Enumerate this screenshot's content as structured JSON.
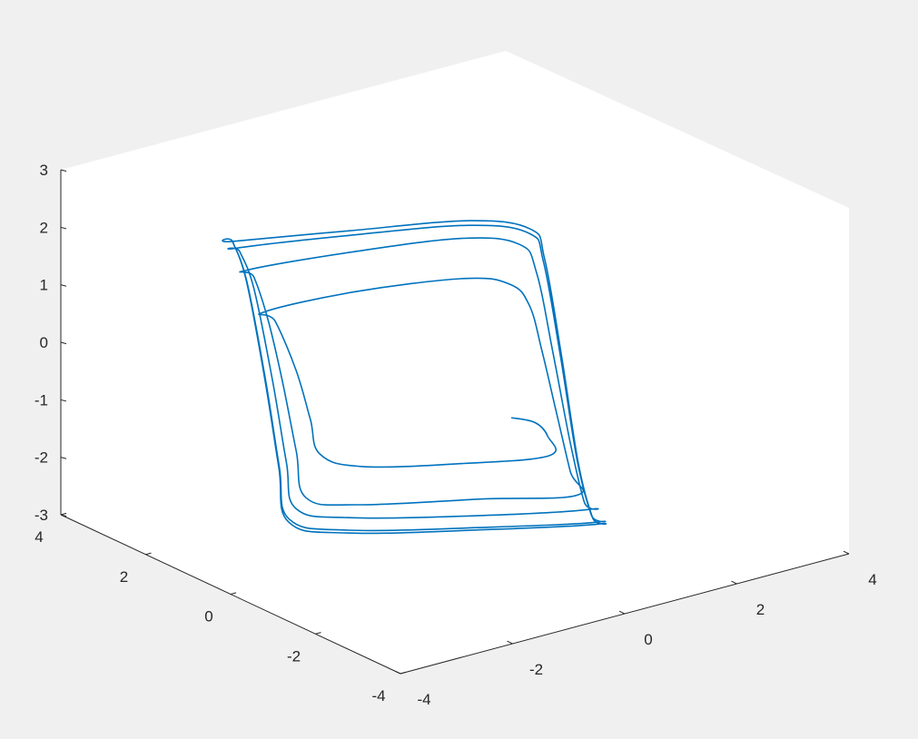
{
  "figure": {
    "background_color": "#f0f0f0",
    "axes_background_color": "#ffffff",
    "axis_color": "#262626",
    "line_color": "#0072bd"
  },
  "chart_data": {
    "type": "line",
    "view": "3d",
    "title": "",
    "xlabel": "",
    "ylabel": "",
    "zlabel": "",
    "grid": false,
    "box": false,
    "xlim": [
      -4,
      4
    ],
    "ylim": [
      -4,
      4
    ],
    "zlim": [
      -3,
      3
    ],
    "xticks": [
      -4,
      -2,
      0,
      2,
      4
    ],
    "yticks": [
      -4,
      -2,
      0,
      2,
      4
    ],
    "zticks": [
      -3,
      -2,
      -1,
      0,
      1,
      2,
      3
    ],
    "xtick_labels": [
      "-4",
      "-2",
      "0",
      "2",
      "4"
    ],
    "ytick_labels": [
      "-4",
      "-2",
      "0",
      "2",
      "4"
    ],
    "ztick_labels": [
      "-3",
      "-2",
      "-1",
      "0",
      "1",
      "2",
      "3"
    ],
    "series": [
      {
        "color": "#0072bd",
        "description": "Trajectory starting near (x=0.4, y=-0.8, z=-0.8) that spirals outward onto a relaxation-oscillation limit cycle: slow branches near z=+2.2 and z=-2.8, fast jumps between them.",
        "points": [
          [
            0.4,
            -0.8,
            -0.8
          ],
          [
            0.9,
            -0.7,
            -1.05
          ],
          [
            1.2,
            -0.6,
            -1.4
          ],
          [
            1.3,
            -0.5,
            -1.8
          ],
          [
            0.0,
            -0.2,
            -1.7
          ],
          [
            -1.5,
            0.2,
            -1.5
          ],
          [
            -2.1,
            0.4,
            -1.2
          ],
          [
            -2.2,
            0.5,
            -0.6
          ],
          [
            -2.3,
            0.7,
            0.2
          ],
          [
            -2.45,
            1.0,
            1.0
          ],
          [
            -2.5,
            1.2,
            1.1
          ],
          [
            -1.2,
            0.8,
            1.25
          ],
          [
            0.3,
            0.2,
            1.3
          ],
          [
            0.9,
            -0.1,
            1.15
          ],
          [
            1.1,
            -0.3,
            0.8
          ],
          [
            1.25,
            -0.4,
            0.0
          ],
          [
            1.35,
            -0.6,
            -1.0
          ],
          [
            1.45,
            -0.8,
            -2.0
          ],
          [
            1.5,
            -0.9,
            -2.4
          ],
          [
            0.2,
            -0.4,
            -2.3
          ],
          [
            -1.5,
            0.3,
            -2.2
          ],
          [
            -2.2,
            0.6,
            -2.0
          ],
          [
            -2.3,
            0.7,
            -1.2
          ],
          [
            -2.4,
            0.9,
            0.0
          ],
          [
            -2.5,
            1.1,
            1.0
          ],
          [
            -2.6,
            1.3,
            1.7
          ],
          [
            -2.65,
            1.4,
            1.8
          ],
          [
            -1.2,
            0.8,
            1.95
          ],
          [
            0.3,
            0.2,
            2.0
          ],
          [
            1.0,
            -0.2,
            1.85
          ],
          [
            1.15,
            -0.4,
            1.4
          ],
          [
            1.3,
            -0.6,
            0.0
          ],
          [
            1.45,
            -0.8,
            -1.5
          ],
          [
            1.55,
            -1.0,
            -2.5
          ],
          [
            1.6,
            -1.1,
            -2.6
          ],
          [
            0.2,
            -0.5,
            -2.55
          ],
          [
            -1.6,
            0.3,
            -2.4
          ],
          [
            -2.3,
            0.7,
            -2.2
          ],
          [
            -2.4,
            0.8,
            -1.4
          ],
          [
            -2.5,
            1.0,
            0.0
          ],
          [
            -2.6,
            1.3,
            1.5
          ],
          [
            -2.7,
            1.5,
            2.1
          ],
          [
            -2.72,
            1.55,
            2.15
          ],
          [
            -1.2,
            0.9,
            2.2
          ],
          [
            0.4,
            0.2,
            2.2
          ],
          [
            1.1,
            -0.3,
            2.05
          ],
          [
            1.2,
            -0.5,
            1.6
          ],
          [
            1.35,
            -0.7,
            0.0
          ],
          [
            1.5,
            -0.9,
            -1.8
          ],
          [
            1.6,
            -1.1,
            -2.7
          ],
          [
            1.65,
            -1.2,
            -2.8
          ],
          [
            0.3,
            -0.5,
            -2.78
          ],
          [
            -1.6,
            0.4,
            -2.65
          ],
          [
            -2.35,
            0.8,
            -2.4
          ],
          [
            -2.45,
            0.9,
            -1.5
          ],
          [
            -2.55,
            1.1,
            0.0
          ],
          [
            -2.65,
            1.4,
            1.6
          ],
          [
            -2.75,
            1.6,
            2.25
          ],
          [
            -2.76,
            1.6,
            2.26
          ],
          [
            -1.2,
            0.9,
            2.28
          ],
          [
            0.4,
            0.2,
            2.28
          ],
          [
            1.12,
            -0.3,
            2.12
          ],
          [
            1.22,
            -0.5,
            1.65
          ],
          [
            1.37,
            -0.7,
            0.0
          ],
          [
            1.52,
            -0.9,
            -1.85
          ],
          [
            1.62,
            -1.1,
            -2.75
          ],
          [
            1.66,
            -1.2,
            -2.84
          ],
          [
            0.3,
            -0.5,
            -2.82
          ],
          [
            -1.6,
            0.4,
            -2.7
          ],
          [
            -2.36,
            0.8,
            -2.45
          ],
          [
            -2.46,
            0.9,
            -1.5
          ],
          [
            -2.56,
            1.1,
            0.0
          ],
          [
            -2.66,
            1.4,
            1.62
          ],
          [
            -2.76,
            1.6,
            2.27
          ]
        ]
      }
    ]
  }
}
